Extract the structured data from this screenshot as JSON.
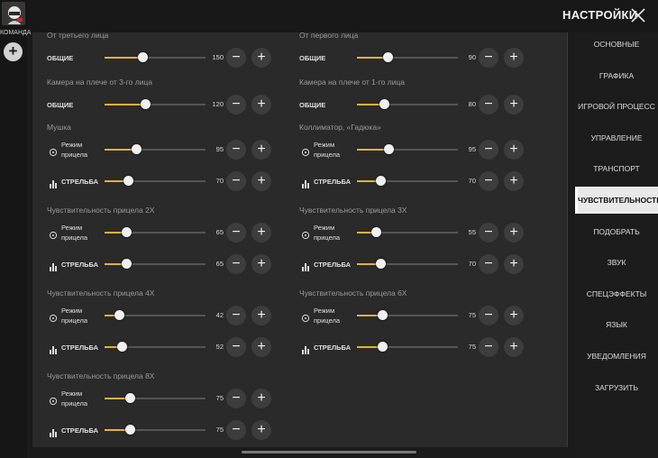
{
  "header": {
    "title": "НАСТРОЙКИ"
  },
  "team": {
    "label": "КОМАНДА"
  },
  "colors": {
    "accent": "#e3b13a",
    "active_menu_bg": "#e9e9e9"
  },
  "left_column": [
    {
      "title": "От третьего лица",
      "rows": [
        {
          "label": "ОБЩИЕ",
          "value": "150",
          "max": 400
        }
      ]
    },
    {
      "title": "Камера на плече от 3-го лица",
      "rows": [
        {
          "label": "ОБЩИЕ",
          "value": "120",
          "max": 300
        }
      ]
    },
    {
      "title": "Мушка",
      "rows": [
        {
          "label": "Режим прицела",
          "value": "95",
          "max": 300,
          "icon": "crosshair-icon"
        },
        {
          "label": "СТРЕЛЬБА",
          "value": "70",
          "max": 300,
          "icon": "bars-icon"
        }
      ]
    },
    {
      "title": "Чувствительность прицела 2X",
      "rows": [
        {
          "label": "Режим прицела",
          "value": "65",
          "max": 300,
          "icon": "crosshair-icon"
        },
        {
          "label": "СТРЕЛЬБА",
          "value": "65",
          "max": 300,
          "icon": "bars-icon"
        }
      ]
    },
    {
      "title": "Чувствительность прицела 4X",
      "rows": [
        {
          "label": "Режим прицела",
          "value": "42",
          "max": 300,
          "icon": "crosshair-icon"
        },
        {
          "label": "СТРЕЛЬБА",
          "value": "52",
          "max": 300,
          "icon": "bars-icon"
        }
      ]
    },
    {
      "title": "Чувствительность прицела 8X",
      "rows": [
        {
          "label": "Режим прицела",
          "value": "75",
          "max": 300,
          "icon": "crosshair-icon"
        },
        {
          "label": "СТРЕЛЬБА",
          "value": "75",
          "max": 300,
          "icon": "bars-icon"
        }
      ]
    }
  ],
  "right_column": [
    {
      "title": "От первого лица",
      "rows": [
        {
          "label": "ОБЩИЕ",
          "value": "90",
          "max": 300
        }
      ]
    },
    {
      "title": "Камера на плече от 1-го лица",
      "rows": [
        {
          "label": "ОБЩИЕ",
          "value": "80",
          "max": 300
        }
      ]
    },
    {
      "title": "Коллиматор, «Гадюка»",
      "rows": [
        {
          "label": "Режим прицела",
          "value": "95",
          "max": 300,
          "icon": "crosshair-icon"
        },
        {
          "label": "СТРЕЛЬБА",
          "value": "70",
          "max": 300,
          "icon": "bars-icon"
        }
      ]
    },
    {
      "title": "Чувствительность прицела 3X",
      "rows": [
        {
          "label": "Режим прицела",
          "value": "55",
          "max": 300,
          "icon": "crosshair-icon"
        },
        {
          "label": "СТРЕЛЬБА",
          "value": "70",
          "max": 300,
          "icon": "bars-icon"
        }
      ]
    },
    {
      "title": "Чувствительность прицела 6X",
      "rows": [
        {
          "label": "Режим прицела",
          "value": "75",
          "max": 300,
          "icon": "crosshair-icon"
        },
        {
          "label": "СТРЕЛЬБА",
          "value": "75",
          "max": 300,
          "icon": "bars-icon"
        }
      ]
    }
  ],
  "menu": [
    {
      "label": "ОСНОВНЫЕ",
      "active": false
    },
    {
      "label": "ГРАФИКА",
      "active": false
    },
    {
      "label": "ИГРОВОЙ ПРОЦЕСС",
      "active": false
    },
    {
      "label": "УПРАВЛЕНИЕ",
      "active": false
    },
    {
      "label": "ТРАНСПОРТ",
      "active": false
    },
    {
      "label": "ЧУВСТВИТЕЛЬНОСТЬ",
      "active": true
    },
    {
      "label": "ПОДОБРАТЬ",
      "active": false
    },
    {
      "label": "ЗВУК",
      "active": false
    },
    {
      "label": "СПЕЦЭФФЕКТЫ",
      "active": false
    },
    {
      "label": "ЯЗЫК",
      "active": false
    },
    {
      "label": "УВЕДОМЛЕНИЯ",
      "active": false
    },
    {
      "label": "ЗАГРУЗИТЬ",
      "active": false
    }
  ]
}
